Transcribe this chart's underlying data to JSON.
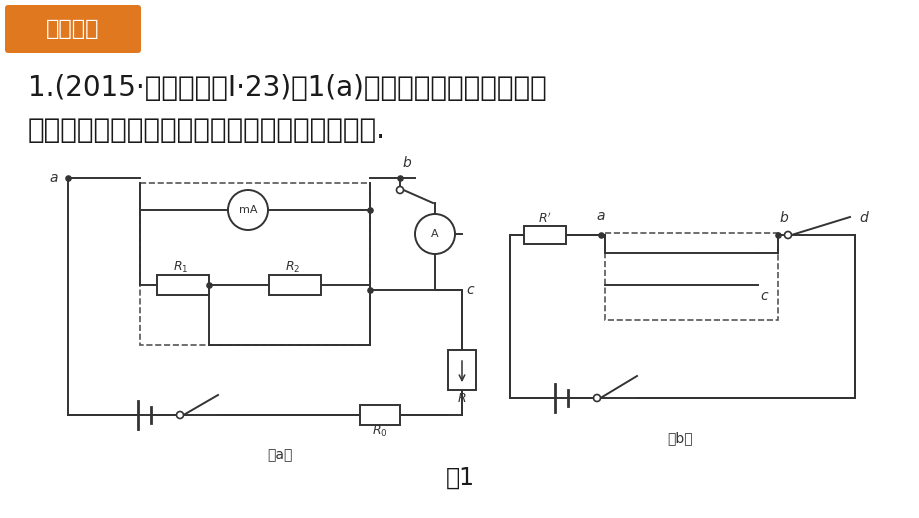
{
  "bg_color": "#ffffff",
  "header_bg": "#E07820",
  "header_text": "真题示例",
  "header_text_color": "#ffffff",
  "body_text_line1": "1.(2015·新课标全国Ⅰ·23)图1(a)为某同学改装和校准毫安",
  "body_text_line2": "表的电路图，其中虚线框内是毫安表的改装电路.",
  "caption": "图1",
  "text_color": "#1a1a1a",
  "font_size_body": 20,
  "font_size_caption": 17,
  "lc": "#333333",
  "dc": "#555555"
}
